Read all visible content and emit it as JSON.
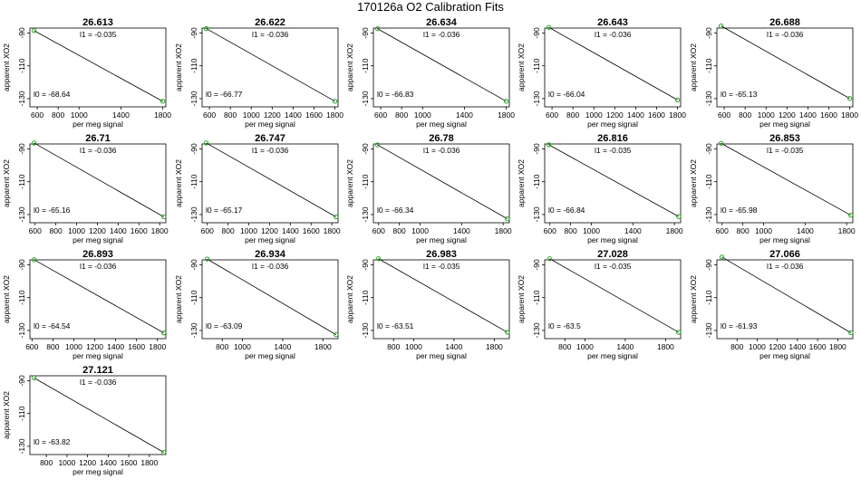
{
  "figure_title": "170126a   O2 Calibration Fits",
  "chart_data": {
    "type": "scatter",
    "title": "170126a   O2 Calibration Fits",
    "xlabel": "per meg signal",
    "ylabel": "apparent XO2",
    "fit_label_slope": "l1 =",
    "fit_label_intercept": "l0 =",
    "point_color": "#22aa22",
    "line_color": "#000000",
    "ylim": [
      -135,
      -87
    ],
    "yticks": [
      -90,
      -110,
      -130
    ],
    "panels": [
      {
        "title": "26.613",
        "slope": "-0.035",
        "intercept": "-68.64",
        "xlim": [
          530,
          1830
        ],
        "xticks": [
          600,
          800,
          1000,
          1400,
          1800
        ],
        "points": [
          [
            570,
            -88.6
          ],
          [
            1800,
            -131.6
          ]
        ]
      },
      {
        "title": "26.622",
        "slope": "-0.036",
        "intercept": "-66.77",
        "xlim": [
          530,
          1830
        ],
        "xticks": [
          600,
          800,
          1000,
          1200,
          1400,
          1600,
          1800
        ],
        "points": [
          [
            570,
            -87.3
          ],
          [
            1800,
            -131.6
          ]
        ]
      },
      {
        "title": "26.634",
        "slope": "-0.036",
        "intercept": "-66.83",
        "xlim": [
          530,
          1830
        ],
        "xticks": [
          600,
          800,
          1000,
          1400,
          1800
        ],
        "points": [
          [
            570,
            -87.4
          ],
          [
            1800,
            -131.6
          ]
        ]
      },
      {
        "title": "26.643",
        "slope": "-0.036",
        "intercept": "-66.04",
        "xlim": [
          530,
          1830
        ],
        "xticks": [
          600,
          800,
          1000,
          1200,
          1400,
          1600,
          1800
        ],
        "points": [
          [
            570,
            -86.6
          ],
          [
            1800,
            -130.8
          ]
        ]
      },
      {
        "title": "26.688",
        "slope": "-0.036",
        "intercept": "-65.13",
        "xlim": [
          530,
          1830
        ],
        "xticks": [
          600,
          800,
          1000,
          1200,
          1400,
          1600,
          1800
        ],
        "points": [
          [
            570,
            -85.7
          ],
          [
            1800,
            -129.9
          ]
        ]
      },
      {
        "title": "26.71",
        "slope": "-0.036",
        "intercept": "-65.16",
        "xlim": [
          550,
          1860
        ],
        "xticks": [
          600,
          800,
          1000,
          1200,
          1400,
          1600,
          1800
        ],
        "points": [
          [
            590,
            -86.4
          ],
          [
            1840,
            -131.4
          ]
        ]
      },
      {
        "title": "26.747",
        "slope": "-0.036",
        "intercept": "-65.17",
        "xlim": [
          550,
          1860
        ],
        "xticks": [
          600,
          800,
          1000,
          1200,
          1400,
          1600,
          1800
        ],
        "points": [
          [
            590,
            -86.4
          ],
          [
            1840,
            -131.4
          ]
        ]
      },
      {
        "title": "26.78",
        "slope": "-0.036",
        "intercept": "-66.34",
        "xlim": [
          550,
          1860
        ],
        "xticks": [
          600,
          800,
          1000,
          1400,
          1800
        ],
        "points": [
          [
            590,
            -87.6
          ],
          [
            1840,
            -132.6
          ]
        ]
      },
      {
        "title": "26.816",
        "slope": "-0.035",
        "intercept": "-66.84",
        "xlim": [
          550,
          1860
        ],
        "xticks": [
          600,
          800,
          1000,
          1400,
          1800
        ],
        "points": [
          [
            590,
            -87.5
          ],
          [
            1840,
            -131.2
          ]
        ]
      },
      {
        "title": "26.853",
        "slope": "-0.035",
        "intercept": "-65.98",
        "xlim": [
          550,
          1860
        ],
        "xticks": [
          600,
          800,
          1000,
          1400,
          1800
        ],
        "points": [
          [
            590,
            -86.6
          ],
          [
            1840,
            -130.4
          ]
        ]
      },
      {
        "title": "26.893",
        "slope": "-0.036",
        "intercept": "-64.54",
        "xlim": [
          580,
          1880
        ],
        "xticks": [
          600,
          800,
          1000,
          1200,
          1400,
          1600,
          1800
        ],
        "points": [
          [
            620,
            -86.9
          ],
          [
            1860,
            -131.5
          ]
        ]
      },
      {
        "title": "26.934",
        "slope": "-0.036",
        "intercept": "-63.09",
        "xlim": [
          600,
          1950
        ],
        "xticks": [
          800,
          1000,
          1400,
          1800
        ],
        "points": [
          [
            650,
            -86.5
          ],
          [
            1930,
            -132.6
          ]
        ]
      },
      {
        "title": "26.983",
        "slope": "-0.035",
        "intercept": "-63.51",
        "xlim": [
          600,
          1950
        ],
        "xticks": [
          800,
          1000,
          1400,
          1800
        ],
        "points": [
          [
            650,
            -86.3
          ],
          [
            1930,
            -131.1
          ]
        ]
      },
      {
        "title": "27.028",
        "slope": "-0.035",
        "intercept": "-63.5",
        "xlim": [
          600,
          1950
        ],
        "xticks": [
          800,
          1000,
          1400,
          1800
        ],
        "points": [
          [
            650,
            -86.3
          ],
          [
            1930,
            -131.1
          ]
        ]
      },
      {
        "title": "27.066",
        "slope": "-0.036",
        "intercept": "-61.93",
        "xlim": [
          600,
          1950
        ],
        "xticks": [
          800,
          1000,
          1200,
          1400,
          1600,
          1800
        ],
        "points": [
          [
            650,
            -85.3
          ],
          [
            1930,
            -131.4
          ]
        ]
      },
      {
        "title": "27.121",
        "slope": "-0.036",
        "intercept": "-63.82",
        "xlim": [
          640,
          1960
        ],
        "xticks": [
          800,
          1000,
          1200,
          1400,
          1600,
          1800
        ],
        "points": [
          [
            680,
            -88.3
          ],
          [
            1940,
            -133.7
          ]
        ]
      }
    ]
  }
}
